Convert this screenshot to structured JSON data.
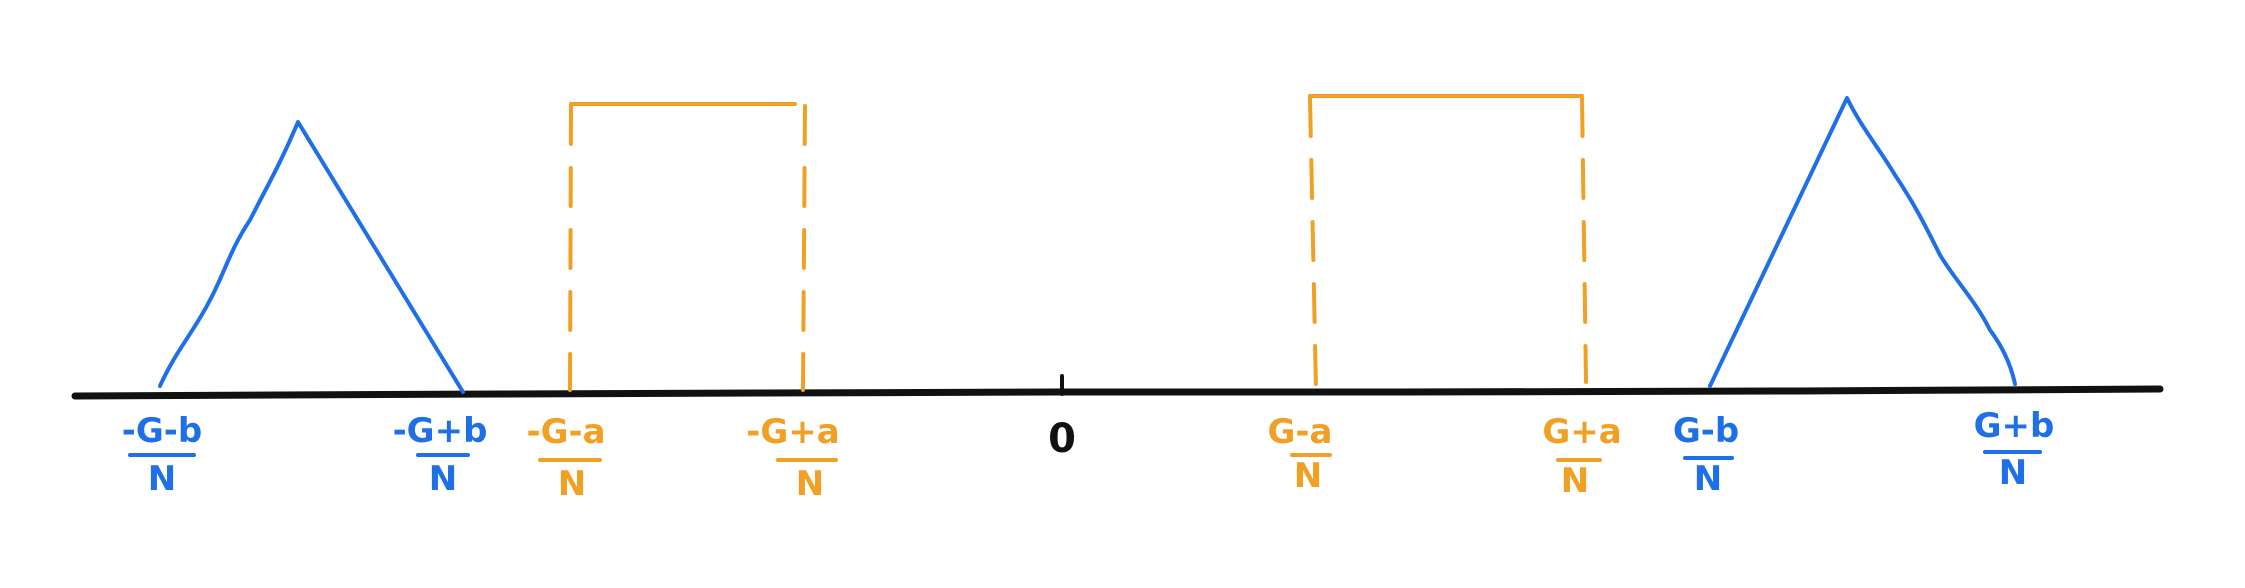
{
  "colors": {
    "axis": "#111111",
    "blue": "#1E6FE8",
    "orange": "#F2A023"
  },
  "labels": {
    "blue_1": {
      "num": "-G-b",
      "den": "N"
    },
    "blue_2": {
      "num": "-G+b",
      "den": "N"
    },
    "orange_1": {
      "num": "-G-a",
      "den": "N"
    },
    "orange_2": {
      "num": "-G+a",
      "den": "N"
    },
    "zero": "0",
    "orange_3": {
      "num": "G-a",
      "den": "N"
    },
    "orange_4": {
      "num": "G+a",
      "den": "N"
    },
    "blue_3": {
      "num": "G-b",
      "den": "N"
    },
    "blue_4": {
      "num": "G+b",
      "den": "N"
    }
  }
}
